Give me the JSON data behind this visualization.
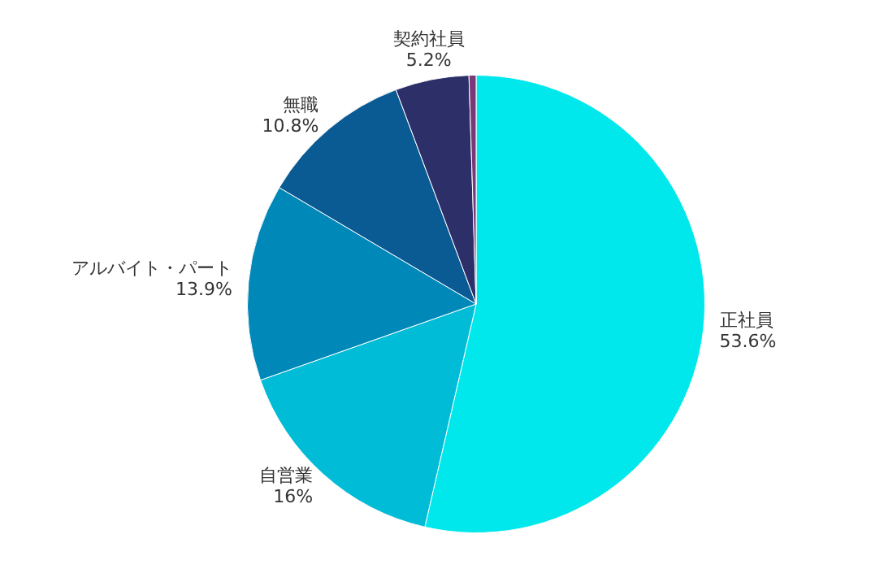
{
  "chart_data": {
    "type": "pie",
    "categories": [
      "正社員",
      "自営業",
      "アルバイト・パート",
      "無職",
      "契約社員",
      null
    ],
    "values": [
      53.6,
      16,
      13.9,
      10.8,
      5.2,
      0.5
    ],
    "colors": [
      "#00e8ec",
      "#00bcd6",
      "#0088b8",
      "#0a5a94",
      "#2d3068",
      "#7a3a78"
    ],
    "value_labels": [
      "53.6%",
      "16%",
      "13.9%",
      "10.8%",
      "5.2%",
      null
    ],
    "legend": false
  }
}
